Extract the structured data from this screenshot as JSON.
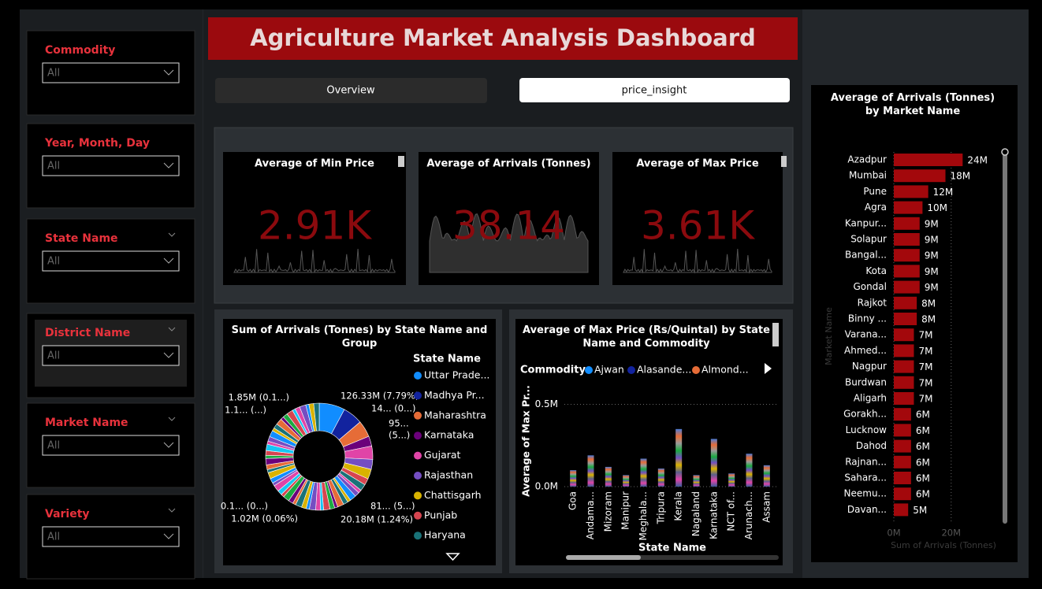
{
  "slicers": [
    {
      "label": "Commodity",
      "value": "All"
    },
    {
      "label": "Year, Month, Day",
      "value": "All"
    },
    {
      "label": "State Name",
      "value": "All"
    },
    {
      "label": "District Name",
      "value": "All"
    },
    {
      "label": "Market Name",
      "value": "All"
    },
    {
      "label": "Variety",
      "value": "All"
    }
  ],
  "header": {
    "title": "Agriculture Market Analysis Dashboard"
  },
  "tabs": [
    "Overview",
    "price_insight"
  ],
  "kpis": [
    {
      "title": "Average of Min Price",
      "value": "2.91K"
    },
    {
      "title": "Average of Arrivals (Tonnes)",
      "value": "38.14"
    },
    {
      "title": "Average of Max Price",
      "value": "3.61K"
    }
  ],
  "chart_data": [
    {
      "type": "pie",
      "title": "Sum of Arrivals (Tonnes) by State Name and Group",
      "legend_title": "State Name",
      "categories": [
        "Uttar Prade...",
        "Madhya Pr...",
        "Maharashtra",
        "Karnataka",
        "Gujarat",
        "Rajasthan",
        "Chattisgarh",
        "Punjab",
        "Haryana"
      ],
      "values": [
        7.79,
        6,
        5,
        3,
        4,
        3,
        3,
        2,
        2
      ],
      "colors": [
        "#118dff",
        "#12239e",
        "#e66c37",
        "#6b007b",
        "#e044a7",
        "#744ec2",
        "#d9b300",
        "#d64550",
        "#197278"
      ],
      "annotations": [
        "126.33M (7.79%)",
        "14... (0...)",
        "95...",
        "(5...)",
        "81... (5...)",
        "20.18M (1.24%)",
        "1.02M (0.06%)",
        "0.1... (0...)",
        "1.85M (0.1...)",
        "1.1... (...)"
      ]
    },
    {
      "type": "bar",
      "title": "Average of Max Price (Rs/Quintal) by State Name and Commodity",
      "legend_title": "Commodity",
      "legend": [
        {
          "name": "Ajwan",
          "color": "#118dff"
        },
        {
          "name": "Alasande...",
          "color": "#12239e"
        },
        {
          "name": "Almond...",
          "color": "#e66c37"
        }
      ],
      "categories": [
        "Goa",
        "Andama...",
        "Mizoram",
        "Manipur",
        "Meghala...",
        "Tripura",
        "Kerala",
        "Nagaland",
        "Karnataka",
        "NCT of...",
        "Arunach...",
        "Assam"
      ],
      "values": [
        100000,
        190000,
        120000,
        70000,
        170000,
        110000,
        350000,
        70000,
        290000,
        80000,
        200000,
        130000
      ],
      "color": "#5b5f8a",
      "ylim": [
        0,
        780000
      ],
      "yticks": [
        {
          "value": 0,
          "label": "0.0M"
        },
        {
          "value": 500000,
          "label": "0.5M"
        }
      ],
      "y_label": "Average of Max Pr...",
      "x_label": "State Name"
    },
    {
      "type": "hbar",
      "title": "Average of Arrivals (Tonnes) by Market Name",
      "categories": [
        "Azadpur",
        "Mumbai",
        "Pune",
        "Agra",
        "Kanpur...",
        "Solapur",
        "Bangal...",
        "Kota",
        "Gondal",
        "Rajkot",
        "Binny ...",
        "Varana...",
        "Ahmed...",
        "Nagpur",
        "Burdwan",
        "Aligarh",
        "Gorakh...",
        "Lucknow",
        "Dahod",
        "Rajnan...",
        "Sahara...",
        "Neemu...",
        "Davan..."
      ],
      "values": [
        24000000,
        18000000,
        12000000,
        10000000,
        9000000,
        9000000,
        9000000,
        9000000,
        9000000,
        8000000,
        8000000,
        7000000,
        7000000,
        7000000,
        7000000,
        7000000,
        6000000,
        6000000,
        6000000,
        6000000,
        6000000,
        6000000,
        5000000
      ],
      "value_labels": [
        "24M",
        "18M",
        "12M",
        "10M",
        "9M",
        "9M",
        "9M",
        "9M",
        "9M",
        "8M",
        "8M",
        "7M",
        "7M",
        "7M",
        "7M",
        "7M",
        "6M",
        "6M",
        "6M",
        "6M",
        "6M",
        "6M",
        "5M"
      ],
      "color": "#a3080c",
      "xlim": [
        0,
        36000000
      ],
      "xticks": [
        {
          "value": 0,
          "label": "0M"
        },
        {
          "value": 20000000,
          "label": "20M"
        }
      ],
      "x_label": "Sum of Arrivals (Tonnes)",
      "y_label": "Market Name"
    }
  ]
}
